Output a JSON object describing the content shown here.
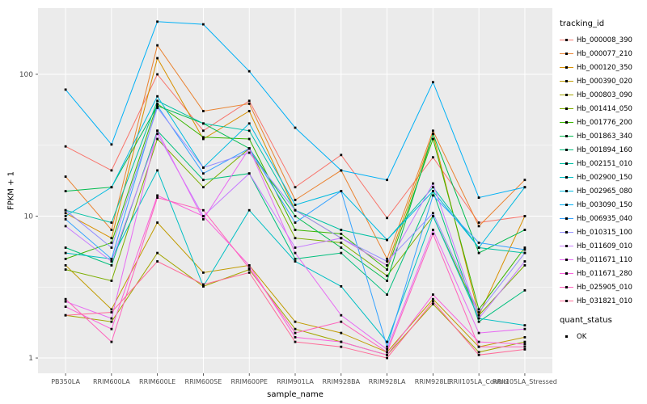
{
  "chart_data": {
    "type": "line",
    "title": "",
    "xlabel": "sample_name",
    "ylabel": "FPKM + 1",
    "yscale": "log10",
    "yticks": [
      1,
      10,
      100
    ],
    "ylim": [
      0.78,
      293
    ],
    "panel_bg": "#EBEBEB",
    "grid_color": "#FFFFFF",
    "point_color": "#000000",
    "legend": {
      "tracking_title": "tracking_id",
      "quant_title": "quant_status",
      "quant_items": [
        "OK"
      ]
    },
    "categories": [
      "PB350LA",
      "RRIM600LA",
      "RRIM600LE",
      "RRIM600SE",
      "RRIM600PE",
      "RRIM901LA",
      "RRIM928BA",
      "RRIM928LA",
      "RRIM928LE",
      "RRII105LA_Control",
      "RRII105LA_Stressed"
    ],
    "series": [
      {
        "name": "Hb_000008_390",
        "color": "#F8766D",
        "values": [
          31,
          21,
          100,
          40,
          65,
          16,
          27,
          9.7,
          26,
          9,
          10
        ]
      },
      {
        "name": "Hb_000077_210",
        "color": "#EA8331",
        "values": [
          19,
          8,
          160,
          55,
          62,
          13,
          21,
          5,
          40,
          8.5,
          18
        ]
      },
      {
        "name": "Hb_000120_350",
        "color": "#D89000",
        "values": [
          10.5,
          7,
          130,
          35,
          55,
          11,
          7,
          4.5,
          38,
          2,
          10
        ]
      },
      {
        "name": "Hb_000390_020",
        "color": "#C09B00",
        "values": [
          4.5,
          2.2,
          9,
          4,
          4.5,
          1.8,
          1.5,
          1.1,
          2.6,
          1.2,
          1.4
        ]
      },
      {
        "name": "Hb_000803_090",
        "color": "#A3A500",
        "values": [
          2,
          1.8,
          5.5,
          3.2,
          4.2,
          1.6,
          1.3,
          1.05,
          2.4,
          1.1,
          1.3
        ]
      },
      {
        "name": "Hb_001414_050",
        "color": "#7CAE00",
        "values": [
          4.2,
          3.5,
          35,
          16,
          30,
          7,
          6.5,
          3.8,
          10,
          2,
          4.5
        ]
      },
      {
        "name": "Hb_001776_200",
        "color": "#39B600",
        "values": [
          5,
          6.5,
          62,
          36,
          35,
          8,
          7.5,
          4.2,
          35,
          2.2,
          6
        ]
      },
      {
        "name": "Hb_001863_340",
        "color": "#00BB4E",
        "values": [
          15,
          16,
          60,
          45,
          30,
          10,
          6,
          3.5,
          38,
          5.5,
          8
        ]
      },
      {
        "name": "Hb_001894_160",
        "color": "#00BF7D",
        "values": [
          6,
          4.5,
          40,
          18,
          20,
          5,
          5.5,
          2.8,
          15,
          1.8,
          3
        ]
      },
      {
        "name": "Hb_002151_010",
        "color": "#00C1A3",
        "values": [
          11,
          9,
          65,
          45,
          40,
          11,
          8,
          6.8,
          16,
          6,
          5.5
        ]
      },
      {
        "name": "Hb_002900_150",
        "color": "#00BFC4",
        "values": [
          5.5,
          5,
          21,
          3.2,
          11,
          4.8,
          3.2,
          1.3,
          10,
          1.9,
          1.7
        ]
      },
      {
        "name": "Hb_002965_080",
        "color": "#00BAE0",
        "values": [
          10,
          16,
          70,
          22,
          45,
          12,
          15,
          6.8,
          15,
          6,
          16
        ]
      },
      {
        "name": "Hb_003090_150",
        "color": "#00B0F6",
        "values": [
          78,
          32,
          235,
          225,
          105,
          42,
          21,
          18,
          88,
          13.5,
          16
        ]
      },
      {
        "name": "Hb_006935_040",
        "color": "#35A2FF",
        "values": [
          9.5,
          5,
          60,
          20,
          30,
          9,
          15,
          1.2,
          14,
          6.5,
          5.8
        ]
      },
      {
        "name": "Hb_010315_100",
        "color": "#9590FF",
        "values": [
          11,
          6,
          58,
          22,
          28,
          11,
          7,
          4.8,
          10.5,
          2.1,
          5.5
        ]
      },
      {
        "name": "Hb_011609_010",
        "color": "#C77CFF",
        "values": [
          8.5,
          4.8,
          38,
          10,
          20,
          6,
          7,
          4.5,
          17,
          1.9,
          4.8
        ]
      },
      {
        "name": "Hb_011671_110",
        "color": "#E76BF3",
        "values": [
          2.5,
          1.9,
          40,
          9.5,
          30,
          5.5,
          2,
          1.15,
          8,
          1.5,
          1.6
        ]
      },
      {
        "name": "Hb_011671_280",
        "color": "#FA62DB",
        "values": [
          2.3,
          1.6,
          14,
          10,
          4.5,
          1.4,
          1.3,
          1.05,
          2.8,
          1.3,
          1.25
        ]
      },
      {
        "name": "Hb_025905_010",
        "color": "#FF62BC",
        "values": [
          2.6,
          1.3,
          13.5,
          11,
          4.3,
          1.5,
          1.8,
          1.1,
          7.5,
          1.2,
          1.2
        ]
      },
      {
        "name": "Hb_031821_010",
        "color": "#FF6A98",
        "values": [
          2,
          2.1,
          4.8,
          3.3,
          4,
          1.3,
          1.2,
          1.0,
          2.5,
          1.05,
          1.15
        ]
      }
    ]
  }
}
